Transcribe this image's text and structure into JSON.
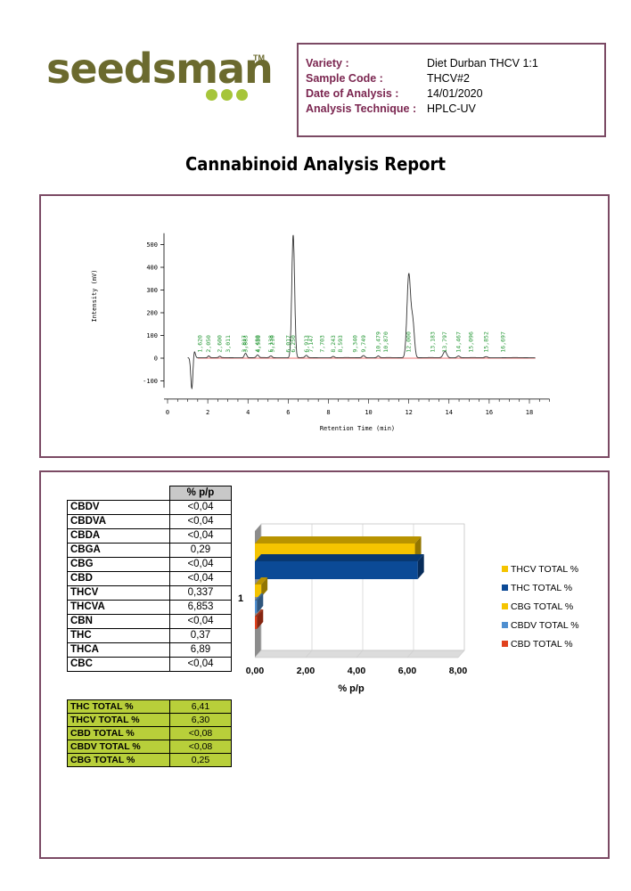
{
  "brand": {
    "logo_text": "seedsman",
    "tm": "TM"
  },
  "info": {
    "rows": [
      {
        "label": "Variety :",
        "value": "Diet Durban THCV 1:1"
      },
      {
        "label": "Sample Code :",
        "value": "THCV#2"
      },
      {
        "label": "Date of Analysis :",
        "value": "14/01/2020"
      },
      {
        "label": "Analysis Technique :",
        "value": "HPLC-UV"
      }
    ]
  },
  "report_title": "Cannabinoid Analysis Report",
  "chromatogram": {
    "ylabel": "Intensity (mV)",
    "xlabel": "Retention Time (min)",
    "y_ticks": [
      "500",
      "400",
      "300",
      "200",
      "100",
      "0",
      "-100"
    ],
    "x_ticks": [
      "0",
      "2",
      "4",
      "6",
      "8",
      "10",
      "12",
      "14",
      "16",
      "18"
    ],
    "peak_labels": [
      "1,620",
      "2,050",
      "2,600",
      "3,011",
      "3,817",
      "3,883",
      "4,480",
      "4,530",
      "5,138",
      "5,210",
      "6,017",
      "6,250",
      "6,913",
      "7,147",
      "7,703",
      "8,243",
      "8,593",
      "9,340",
      "9,749",
      "10,479",
      "10,870",
      "12,000",
      "13,183",
      "13,797",
      "14,467",
      "15,096",
      "15,852",
      "16,697"
    ]
  },
  "results_table": {
    "header": "% p/p",
    "rows": [
      {
        "name": "CBDV",
        "value": "<0,04"
      },
      {
        "name": "CBDVA",
        "value": "<0,04"
      },
      {
        "name": "CBDA",
        "value": "<0,04"
      },
      {
        "name": "CBGA",
        "value": "0,29"
      },
      {
        "name": "CBG",
        "value": "<0,04"
      },
      {
        "name": "CBD",
        "value": "<0,04"
      },
      {
        "name": "THCV",
        "value": "0,337"
      },
      {
        "name": "THCVA",
        "value": "6,853"
      },
      {
        "name": "CBN",
        "value": "<0,04"
      },
      {
        "name": "THC",
        "value": "0,37"
      },
      {
        "name": "THCA",
        "value": "6,89"
      },
      {
        "name": "CBC",
        "value": "<0,04"
      }
    ]
  },
  "totals_table": {
    "rows": [
      {
        "name": "THC TOTAL %",
        "value": "6,41"
      },
      {
        "name": "THCV TOTAL %",
        "value": "6,30"
      },
      {
        "name": "CBD TOTAL %",
        "value": "<0,08"
      },
      {
        "name": "CBDV TOTAL %",
        "value": "<0,08"
      },
      {
        "name": "CBG TOTAL %",
        "value": "0,25"
      }
    ]
  },
  "chart_data": {
    "type": "bar",
    "orientation": "horizontal",
    "categories": [
      "1"
    ],
    "series": [
      {
        "name": "THCV TOTAL %",
        "values": [
          6.3
        ],
        "color": "#f5c400"
      },
      {
        "name": "THC TOTAL %",
        "values": [
          6.41
        ],
        "color": "#0b4a96"
      },
      {
        "name": "CBG TOTAL %",
        "values": [
          0.25
        ],
        "color": "#f5c400"
      },
      {
        "name": "CBDV TOTAL %",
        "values": [
          0.08
        ],
        "color": "#4f8fd0"
      },
      {
        "name": "CBD TOTAL %",
        "values": [
          0.08
        ],
        "color": "#e0401c"
      }
    ],
    "xlabel": "% p/p",
    "xlim": [
      0,
      8
    ],
    "x_ticks": [
      "0,00",
      "2,00",
      "4,00",
      "6,00",
      "8,00"
    ],
    "grid": true,
    "legend": "right"
  }
}
